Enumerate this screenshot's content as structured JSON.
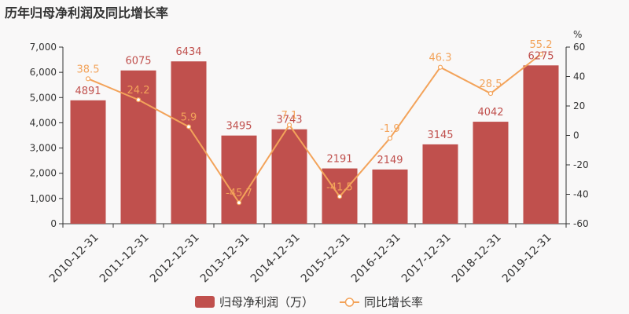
{
  "chart_data": {
    "type": "bar",
    "title": "历年归母净利润及同比增长率",
    "categories": [
      "2010-12-31",
      "2011-12-31",
      "2012-12-31",
      "2013-12-31",
      "2014-12-31",
      "2015-12-31",
      "2016-12-31",
      "2017-12-31",
      "2018-12-31",
      "2019-12-31"
    ],
    "series": [
      {
        "name": "归母净利润（万）",
        "type": "bar",
        "axis": "left",
        "color": "#c0504d",
        "values": [
          4891,
          6075,
          6434,
          3495,
          3743,
          2191,
          2149,
          3145,
          4042,
          6275
        ],
        "labels": [
          "4891",
          "6075",
          "6434",
          "3495",
          "3743",
          "2191",
          "2149",
          "3145",
          "4042",
          "6275"
        ]
      },
      {
        "name": "同比增长率",
        "type": "line",
        "axis": "right",
        "color": "#f3a35a",
        "values": [
          38.5,
          24.2,
          5.9,
          -45.7,
          7.1,
          -41.5,
          -1.9,
          46.3,
          28.5,
          55.2
        ],
        "labels": [
          "38.5",
          "24.2",
          "5.9",
          "-45.7",
          "7.1",
          "-41.5",
          "-1.9",
          "46.3",
          "28.5",
          "55.2"
        ]
      }
    ],
    "y_left": {
      "lim": [
        0,
        7000
      ],
      "ticks": [
        0,
        1000,
        2000,
        3000,
        4000,
        5000,
        6000,
        7000
      ],
      "tick_labels": [
        "0",
        "1,000",
        "2,000",
        "3,000",
        "4,000",
        "5,000",
        "6,000",
        "7,000"
      ]
    },
    "y_right": {
      "unit": "%",
      "lim": [
        -60,
        60
      ],
      "ticks": [
        -60,
        -40,
        -20,
        0,
        20,
        40,
        60
      ],
      "tick_labels": [
        "-60",
        "-40",
        "-20",
        "0",
        "20",
        "40",
        "60"
      ]
    },
    "grid": false,
    "legend_position": "bottom-center",
    "legend": [
      "归母净利润（万）",
      "同比增长率"
    ]
  }
}
